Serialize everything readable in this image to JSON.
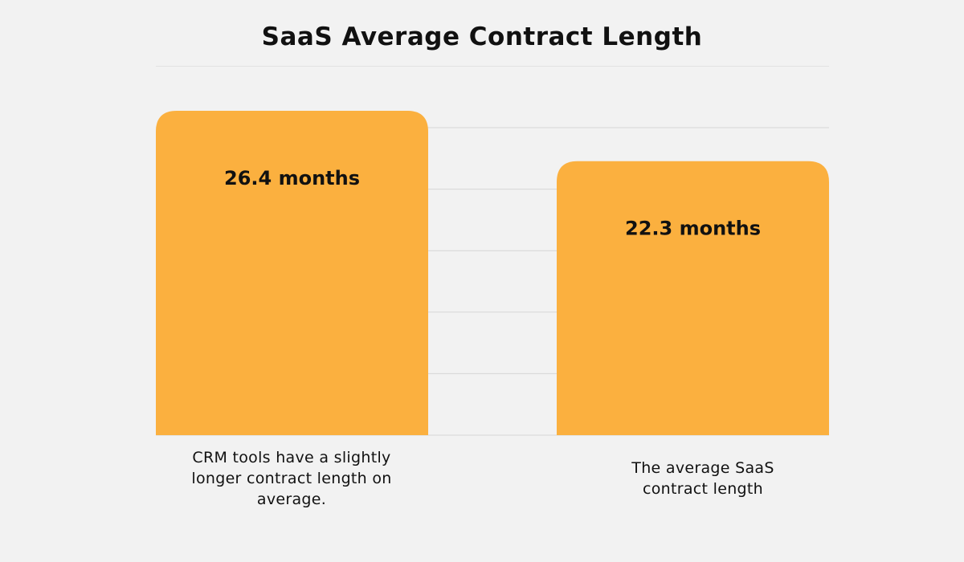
{
  "chart_data": {
    "type": "bar",
    "title": "SaaS Average Contract Length",
    "categories": [
      "CRM tools have a slightly longer contract length on average.",
      "The average SaaS contract length"
    ],
    "values": [
      26.4,
      22.3
    ],
    "value_labels": [
      "26.4 months",
      "22.3 months"
    ],
    "unit": "months",
    "ylim": [
      0,
      26.4
    ],
    "grid": true,
    "legend": "none"
  },
  "colors": {
    "bar": "#fbb03f",
    "grid": "#d6d6d6",
    "background": "#f2f2f2"
  }
}
